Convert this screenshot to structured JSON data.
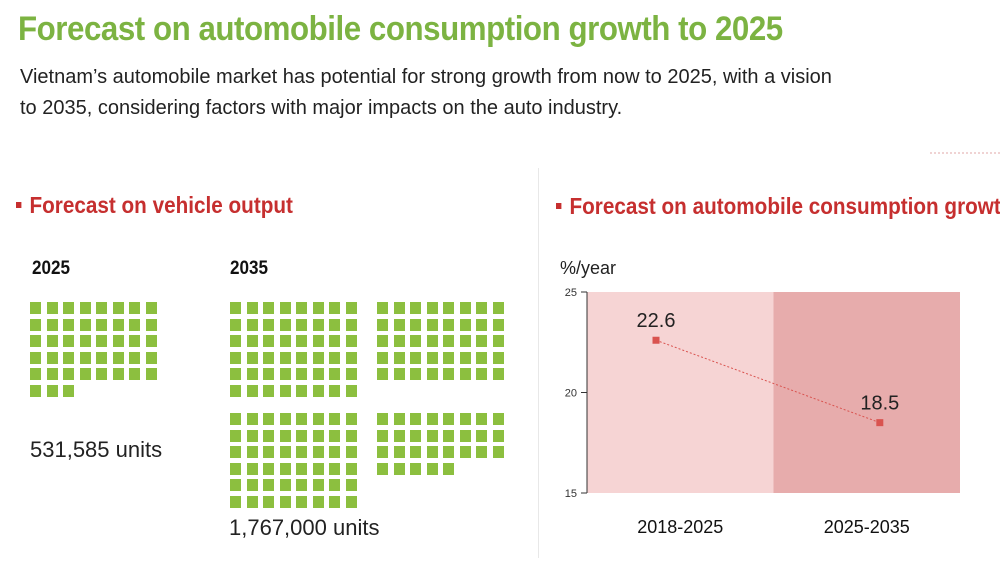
{
  "header": {
    "title": "Forecast on automobile consumption growth to 2025",
    "intro_line1": "Vietnam’s automobile market has potential for strong growth from now to 2025, with a vision",
    "intro_line2": "to 2035, considering factors with major impacts on the auto industry."
  },
  "output_section": {
    "heading": "Forecast on vehicle output",
    "year_2025": "2025",
    "year_2035": "2035",
    "units_2025": "531,585 units",
    "units_2035": "1,767,000 units",
    "icon": "car-unit-square-icon",
    "icon_color": "#8cbf3f"
  },
  "growth_section": {
    "heading": "Forecast on automobile consumption growth"
  },
  "chart_data": {
    "type": "line",
    "title": "Forecast on automobile consumption growth",
    "ylabel": "%/year",
    "categories": [
      "2018-2025",
      "2025-2035"
    ],
    "values": [
      22.6,
      18.5
    ],
    "value_labels": [
      "22.6",
      "18.5"
    ],
    "ylim": [
      15,
      25
    ],
    "yticks": [
      15,
      20,
      25
    ],
    "grid": false,
    "band_colors": [
      "#f6d4d4",
      "#e7acac"
    ],
    "line_color": "#d9534f"
  }
}
